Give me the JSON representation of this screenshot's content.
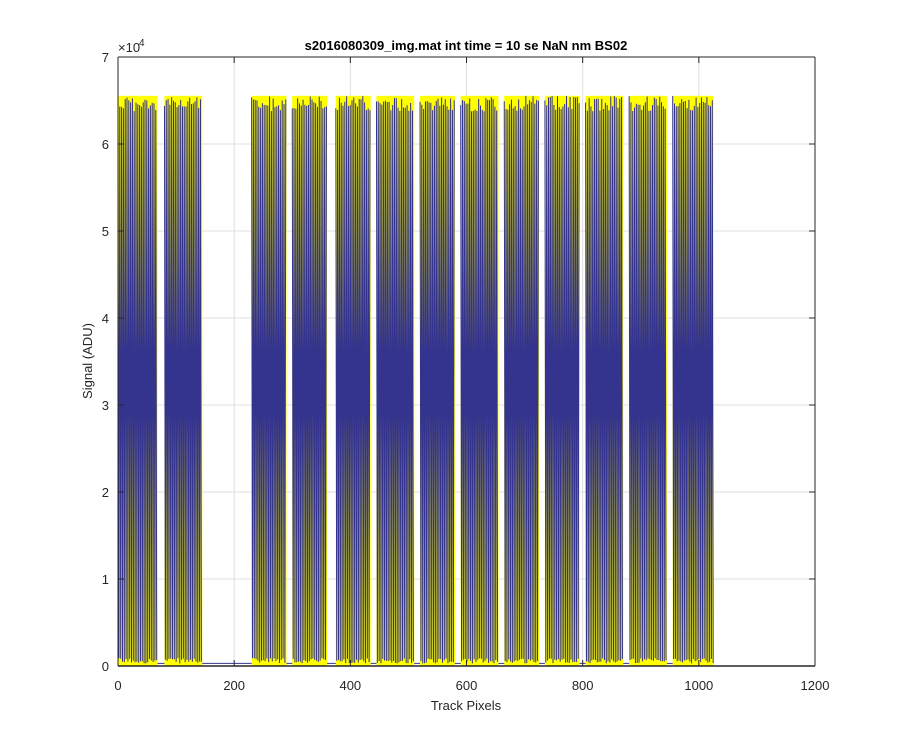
{
  "chart_data": {
    "type": "line",
    "title": "s2016080309_img.mat int time = 10 se  NaN nm BS02",
    "xlabel": "Track Pixels",
    "ylabel": "Signal (ADU)",
    "xlim": [
      0,
      1200
    ],
    "ylim": [
      0,
      70000
    ],
    "y_exponent_label": "×10",
    "y_exponent_power": "4",
    "x_ticks": [
      0,
      200,
      400,
      600,
      800,
      1000,
      1200
    ],
    "y_ticks": [
      0,
      1,
      2,
      3,
      4,
      5,
      6,
      7
    ],
    "grid": true,
    "saturation_level": 65535,
    "baseline_level": 300,
    "signal_segments": [
      [
        0,
        68
      ],
      [
        80,
        145
      ],
      [
        230,
        290
      ],
      [
        300,
        360
      ],
      [
        375,
        435
      ],
      [
        445,
        510
      ],
      [
        520,
        580
      ],
      [
        590,
        655
      ],
      [
        665,
        725
      ],
      [
        735,
        795
      ],
      [
        805,
        870
      ],
      [
        880,
        945
      ],
      [
        955,
        1025
      ]
    ],
    "series": [
      {
        "color": "#ffff00",
        "role": "background"
      },
      {
        "color": "#34338e",
        "role": "foreground"
      }
    ]
  }
}
